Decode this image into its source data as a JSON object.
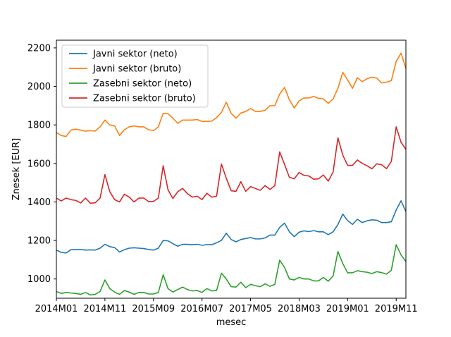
{
  "chart_data": {
    "type": "line",
    "xlabel": "mesec",
    "ylabel": "Znesek [EUR]",
    "xticks": [
      "2014M01",
      "2014M11",
      "2015M09",
      "2016M07",
      "2017M05",
      "2018M03",
      "2019M01",
      "2019M11"
    ],
    "yticks": [
      1000,
      1200,
      1400,
      1600,
      1800,
      2000,
      2200
    ],
    "x_start": "2014M01",
    "x_end": "2020M01",
    "ylim": [
      900,
      2240
    ],
    "legend_position": "top-left",
    "grid": false,
    "series": [
      {
        "name": "Javni sektor (neto)",
        "color": "#1f77b4",
        "values": [
          1150,
          1138,
          1135,
          1152,
          1153,
          1153,
          1150,
          1151,
          1150,
          1160,
          1180,
          1168,
          1163,
          1140,
          1152,
          1160,
          1162,
          1160,
          1158,
          1153,
          1150,
          1160,
          1200,
          1198,
          1183,
          1170,
          1180,
          1180,
          1178,
          1180,
          1175,
          1178,
          1178,
          1188,
          1200,
          1238,
          1205,
          1193,
          1205,
          1210,
          1215,
          1208,
          1208,
          1213,
          1228,
          1228,
          1268,
          1290,
          1245,
          1220,
          1243,
          1250,
          1246,
          1251,
          1245,
          1245,
          1230,
          1245,
          1283,
          1337,
          1303,
          1283,
          1310,
          1293,
          1302,
          1307,
          1305,
          1293,
          1293,
          1297,
          1358,
          1406,
          1350,
          1328
        ]
      },
      {
        "name": "Javni sektor (bruto)",
        "color": "#ff7f0e",
        "values": [
          1760,
          1745,
          1740,
          1773,
          1778,
          1773,
          1768,
          1770,
          1768,
          1790,
          1825,
          1800,
          1795,
          1745,
          1775,
          1790,
          1795,
          1790,
          1790,
          1775,
          1770,
          1790,
          1860,
          1858,
          1835,
          1808,
          1825,
          1825,
          1825,
          1828,
          1818,
          1818,
          1820,
          1838,
          1865,
          1918,
          1860,
          1835,
          1862,
          1870,
          1885,
          1870,
          1870,
          1876,
          1900,
          1900,
          1960,
          1995,
          1930,
          1888,
          1925,
          1940,
          1940,
          1948,
          1938,
          1935,
          1912,
          1935,
          1990,
          2073,
          2033,
          1990,
          2045,
          2025,
          2040,
          2048,
          2043,
          2018,
          2022,
          2030,
          2130,
          2173,
          2093,
          2053
        ]
      },
      {
        "name": "Zasebni sektor (neto)",
        "color": "#2ca02c",
        "values": [
          935,
          925,
          930,
          927,
          925,
          920,
          930,
          917,
          920,
          935,
          995,
          950,
          932,
          920,
          940,
          932,
          920,
          930,
          930,
          922,
          922,
          930,
          1022,
          950,
          932,
          945,
          958,
          945,
          938,
          940,
          930,
          950,
          938,
          940,
          1030,
          1000,
          960,
          958,
          983,
          955,
          972,
          965,
          960,
          975,
          962,
          972,
          1098,
          1060,
          1000,
          995,
          1008,
          1000,
          1000,
          990,
          990,
          1008,
          988,
          1015,
          1143,
          1080,
          1032,
          1032,
          1043,
          1038,
          1035,
          1028,
          1038,
          1033,
          1025,
          1045,
          1178,
          1125,
          1090,
          1098
        ]
      },
      {
        "name": "Zasebni sektor (bruto)",
        "color": "#d62728",
        "values": [
          1420,
          1405,
          1420,
          1412,
          1408,
          1395,
          1420,
          1393,
          1396,
          1420,
          1542,
          1453,
          1412,
          1400,
          1440,
          1425,
          1400,
          1420,
          1420,
          1402,
          1403,
          1420,
          1588,
          1463,
          1418,
          1453,
          1470,
          1443,
          1425,
          1430,
          1412,
          1445,
          1425,
          1430,
          1597,
          1523,
          1458,
          1455,
          1505,
          1455,
          1480,
          1470,
          1460,
          1485,
          1465,
          1485,
          1660,
          1595,
          1528,
          1520,
          1553,
          1538,
          1535,
          1518,
          1520,
          1540,
          1508,
          1555,
          1733,
          1643,
          1590,
          1590,
          1618,
          1600,
          1588,
          1572,
          1598,
          1593,
          1573,
          1610,
          1790,
          1710,
          1673,
          1685
        ]
      }
    ]
  }
}
